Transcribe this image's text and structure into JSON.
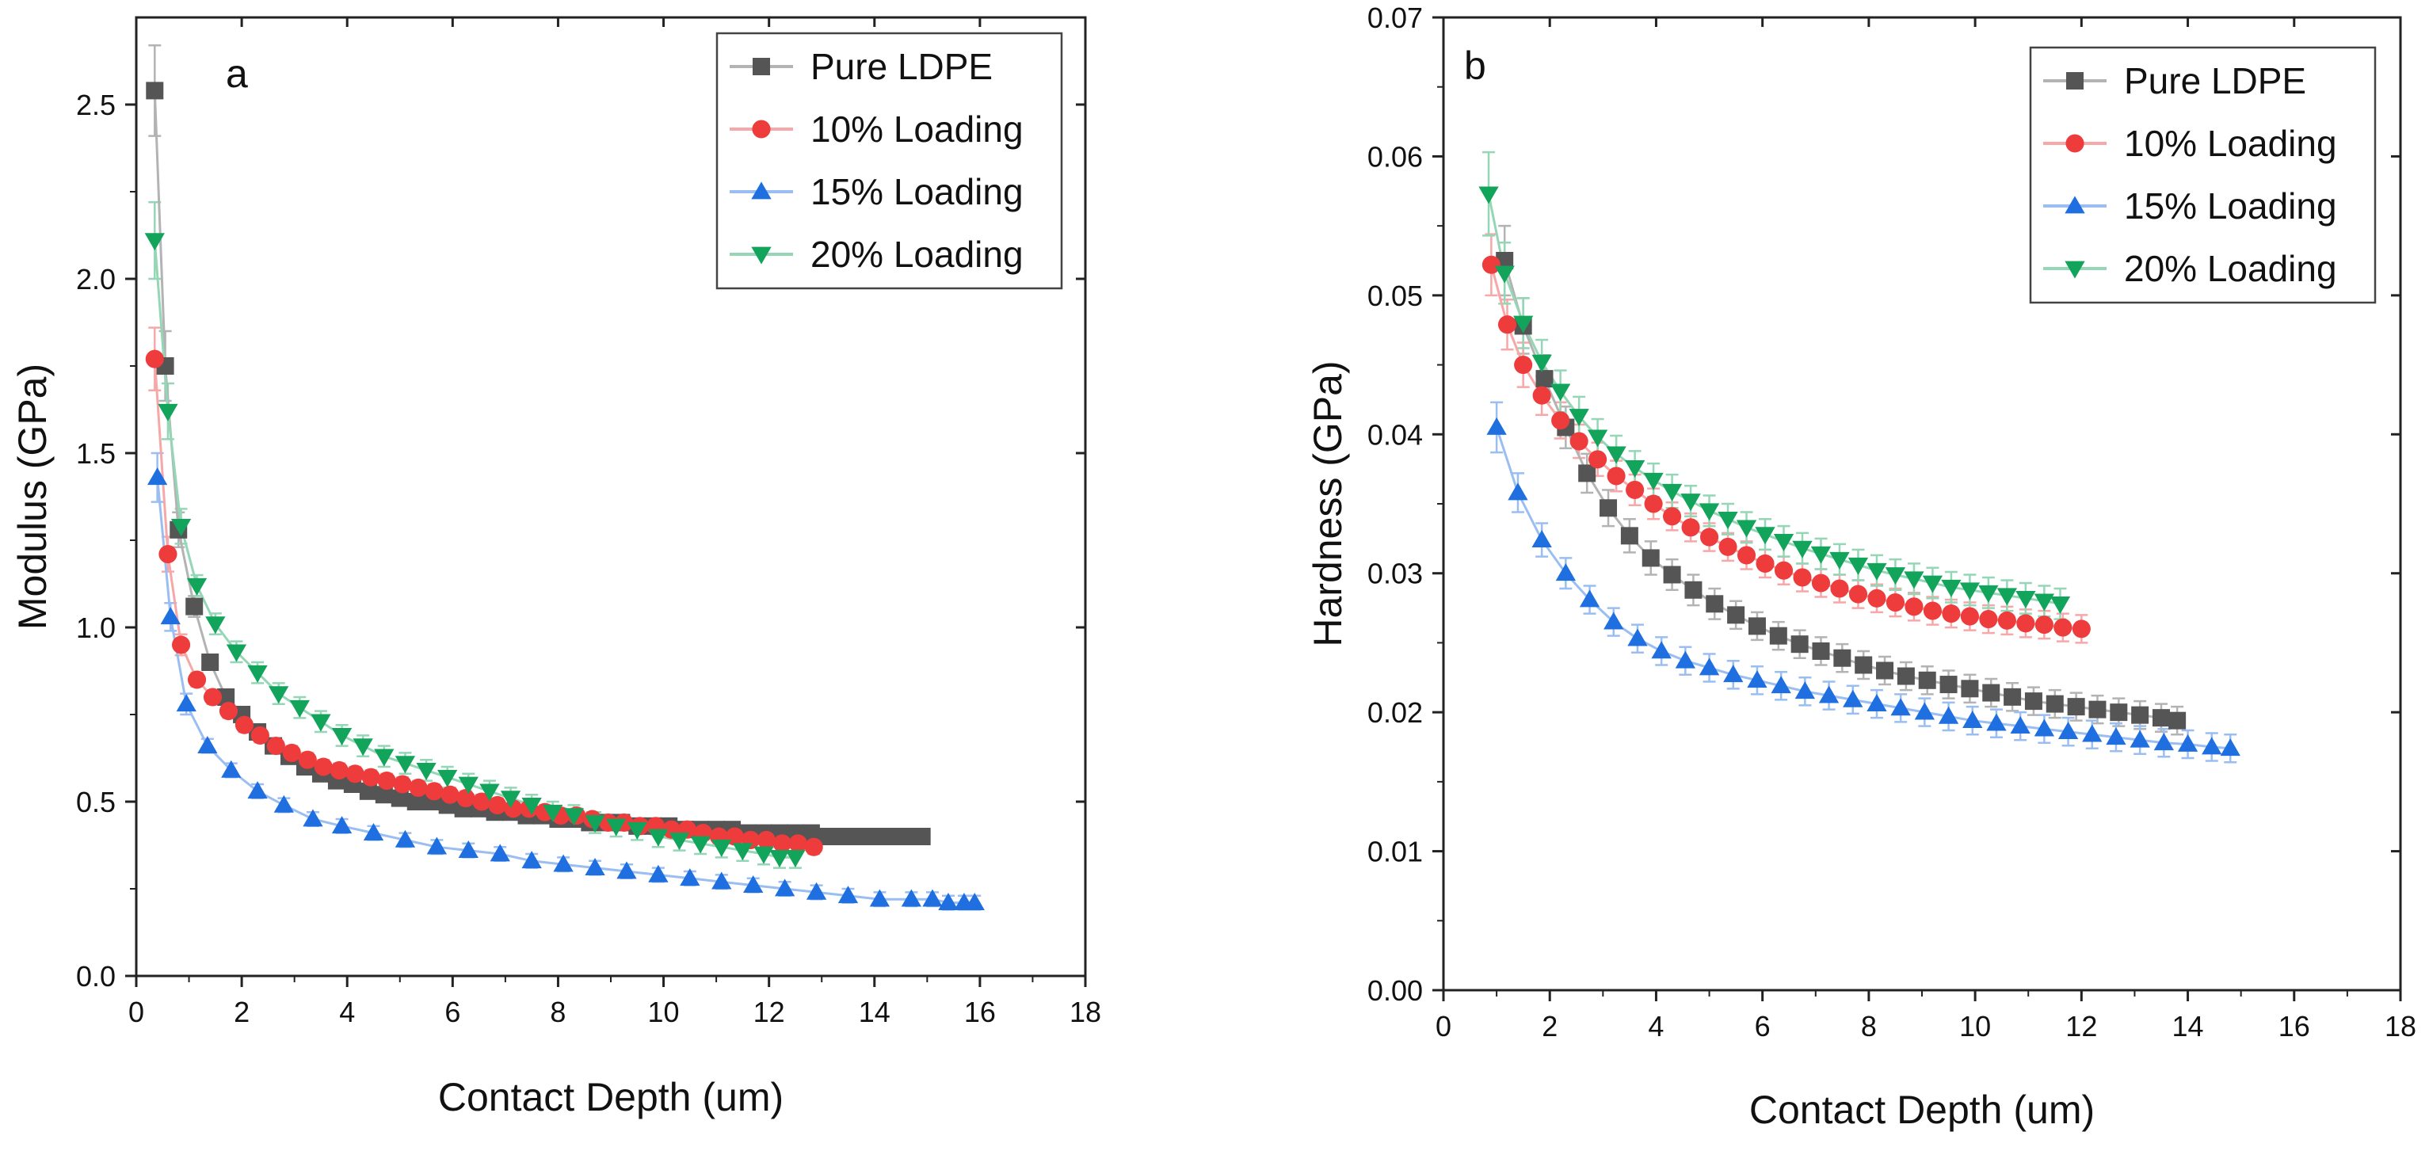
{
  "colors": {
    "pure_ldpe": "#555555",
    "loading_10": "#ee3b3b",
    "loading_15": "#1f6fe0",
    "loading_20": "#12a45a"
  },
  "chart_data": [
    {
      "type": "line",
      "panel_label": "a",
      "title": "",
      "xlabel": "Contact Depth (um)",
      "ylabel": "Modulus (GPa)",
      "xlim": [
        0,
        18
      ],
      "ylim": [
        0,
        2.75
      ],
      "xticks": [
        0,
        2,
        4,
        6,
        8,
        10,
        12,
        14,
        16,
        18
      ],
      "yticks": [
        0.0,
        0.5,
        1.0,
        1.5,
        2.0,
        2.5
      ],
      "xtick_labels": [
        "0",
        "2",
        "4",
        "6",
        "8",
        "10",
        "12",
        "14",
        "16",
        "18"
      ],
      "ytick_labels": [
        "0.0",
        "0.5",
        "1.0",
        "1.5",
        "2.0",
        "2.5"
      ],
      "legend_position": "top-right",
      "series": [
        {
          "name": "Pure LDPE",
          "marker": "square",
          "color_key": "pure_ldpe",
          "x": [
            0.35,
            0.55,
            0.8,
            1.1,
            1.4,
            1.7,
            2.0,
            2.3,
            2.6,
            2.9,
            3.2,
            3.5,
            3.8,
            4.1,
            4.4,
            4.7,
            5.0,
            5.3,
            5.6,
            5.9,
            6.2,
            6.5,
            6.8,
            7.1,
            7.4,
            7.7,
            8.0,
            8.3,
            8.6,
            8.9,
            9.2,
            9.5,
            9.8,
            10.1,
            10.4,
            10.7,
            11.0,
            11.3,
            11.6,
            11.9,
            12.2,
            12.5,
            12.8,
            13.1,
            13.4,
            13.7,
            14.0,
            14.3,
            14.6,
            14.9
          ],
          "y": [
            2.54,
            1.75,
            1.28,
            1.06,
            0.9,
            0.8,
            0.75,
            0.7,
            0.66,
            0.63,
            0.6,
            0.58,
            0.56,
            0.55,
            0.53,
            0.52,
            0.51,
            0.5,
            0.5,
            0.49,
            0.48,
            0.48,
            0.47,
            0.47,
            0.46,
            0.46,
            0.45,
            0.45,
            0.44,
            0.44,
            0.44,
            0.43,
            0.43,
            0.43,
            0.42,
            0.42,
            0.42,
            0.42,
            0.41,
            0.41,
            0.41,
            0.41,
            0.41,
            0.4,
            0.4,
            0.4,
            0.4,
            0.4,
            0.4,
            0.4
          ],
          "err": [
            0.13,
            0.1,
            0.05,
            0.03,
            0.02,
            0.02,
            0.02,
            0.02,
            0.02,
            0.02,
            0.02,
            0.02,
            0.02,
            0.02,
            0.02,
            0.02,
            0.02,
            0.02,
            0.02,
            0.02,
            0.02,
            0.02,
            0.02,
            0.02,
            0.02,
            0.02,
            0.02,
            0.02,
            0.02,
            0.02,
            0.02,
            0.02,
            0.02,
            0.02,
            0.02,
            0.02,
            0.02,
            0.02,
            0.02,
            0.02,
            0.02,
            0.02,
            0.02,
            0.02,
            0.02,
            0.02,
            0.02,
            0.02,
            0.02,
            0.02
          ]
        },
        {
          "name": "10% Loading",
          "marker": "circle",
          "color_key": "loading_10",
          "x": [
            0.35,
            0.6,
            0.85,
            1.15,
            1.45,
            1.75,
            2.05,
            2.35,
            2.65,
            2.95,
            3.25,
            3.55,
            3.85,
            4.15,
            4.45,
            4.75,
            5.05,
            5.35,
            5.65,
            5.95,
            6.25,
            6.55,
            6.85,
            7.15,
            7.45,
            7.75,
            8.05,
            8.35,
            8.65,
            8.95,
            9.25,
            9.55,
            9.85,
            10.15,
            10.45,
            10.75,
            11.05,
            11.35,
            11.65,
            11.95,
            12.25,
            12.55,
            12.85
          ],
          "y": [
            1.77,
            1.21,
            0.95,
            0.85,
            0.8,
            0.76,
            0.72,
            0.69,
            0.66,
            0.64,
            0.62,
            0.6,
            0.59,
            0.58,
            0.57,
            0.56,
            0.55,
            0.54,
            0.53,
            0.52,
            0.51,
            0.5,
            0.49,
            0.48,
            0.48,
            0.47,
            0.46,
            0.46,
            0.45,
            0.44,
            0.44,
            0.43,
            0.43,
            0.42,
            0.42,
            0.41,
            0.4,
            0.4,
            0.39,
            0.39,
            0.38,
            0.38,
            0.37
          ],
          "err": [
            0.09,
            0.05,
            0.03,
            0.02,
            0.02,
            0.02,
            0.02,
            0.02,
            0.02,
            0.02,
            0.02,
            0.02,
            0.02,
            0.02,
            0.02,
            0.02,
            0.02,
            0.02,
            0.02,
            0.02,
            0.02,
            0.02,
            0.02,
            0.02,
            0.02,
            0.02,
            0.02,
            0.02,
            0.02,
            0.02,
            0.02,
            0.02,
            0.02,
            0.02,
            0.02,
            0.02,
            0.02,
            0.02,
            0.02,
            0.02,
            0.02,
            0.02,
            0.02
          ]
        },
        {
          "name": "15% Loading",
          "marker": "triangle-up",
          "color_key": "loading_15",
          "x": [
            0.4,
            0.65,
            0.95,
            1.35,
            1.8,
            2.3,
            2.8,
            3.35,
            3.9,
            4.5,
            5.1,
            5.7,
            6.3,
            6.9,
            7.5,
            8.1,
            8.7,
            9.3,
            9.9,
            10.5,
            11.1,
            11.7,
            12.3,
            12.9,
            13.5,
            14.1,
            14.7,
            15.1,
            15.4,
            15.7,
            15.9
          ],
          "y": [
            1.43,
            1.03,
            0.78,
            0.66,
            0.59,
            0.53,
            0.49,
            0.45,
            0.43,
            0.41,
            0.39,
            0.37,
            0.36,
            0.35,
            0.33,
            0.32,
            0.31,
            0.3,
            0.29,
            0.28,
            0.27,
            0.26,
            0.25,
            0.24,
            0.23,
            0.22,
            0.22,
            0.22,
            0.21,
            0.21,
            0.21
          ],
          "err": [
            0.07,
            0.04,
            0.03,
            0.02,
            0.02,
            0.02,
            0.02,
            0.02,
            0.02,
            0.02,
            0.02,
            0.02,
            0.02,
            0.02,
            0.02,
            0.02,
            0.02,
            0.02,
            0.02,
            0.02,
            0.02,
            0.02,
            0.02,
            0.02,
            0.02,
            0.02,
            0.02,
            0.02,
            0.02,
            0.02,
            0.02
          ]
        },
        {
          "name": "20% Loading",
          "marker": "triangle-down",
          "color_key": "loading_20",
          "x": [
            0.35,
            0.6,
            0.85,
            1.15,
            1.5,
            1.9,
            2.3,
            2.7,
            3.1,
            3.5,
            3.9,
            4.3,
            4.7,
            5.1,
            5.5,
            5.9,
            6.3,
            6.7,
            7.1,
            7.5,
            7.9,
            8.3,
            8.7,
            9.1,
            9.5,
            9.9,
            10.3,
            10.7,
            11.1,
            11.5,
            11.9,
            12.2,
            12.5
          ],
          "y": [
            2.11,
            1.62,
            1.29,
            1.12,
            1.01,
            0.93,
            0.87,
            0.81,
            0.77,
            0.73,
            0.69,
            0.66,
            0.63,
            0.61,
            0.59,
            0.57,
            0.55,
            0.53,
            0.51,
            0.49,
            0.47,
            0.46,
            0.44,
            0.43,
            0.42,
            0.4,
            0.39,
            0.38,
            0.37,
            0.36,
            0.35,
            0.34,
            0.34
          ],
          "err": [
            0.11,
            0.08,
            0.05,
            0.03,
            0.03,
            0.03,
            0.03,
            0.03,
            0.03,
            0.03,
            0.03,
            0.03,
            0.03,
            0.03,
            0.03,
            0.03,
            0.03,
            0.03,
            0.03,
            0.03,
            0.03,
            0.03,
            0.03,
            0.03,
            0.03,
            0.03,
            0.03,
            0.03,
            0.03,
            0.03,
            0.03,
            0.03,
            0.03
          ]
        }
      ]
    },
    {
      "type": "line",
      "panel_label": "b",
      "title": "",
      "xlabel": "Contact Depth (um)",
      "ylabel": "Hardness (GPa)",
      "xlim": [
        0,
        18
      ],
      "ylim": [
        0,
        0.07
      ],
      "xticks": [
        0,
        2,
        4,
        6,
        8,
        10,
        12,
        14,
        16,
        18
      ],
      "yticks": [
        0.0,
        0.01,
        0.02,
        0.03,
        0.04,
        0.05,
        0.06,
        0.07
      ],
      "xtick_labels": [
        "0",
        "2",
        "4",
        "6",
        "8",
        "10",
        "12",
        "14",
        "16",
        "18"
      ],
      "ytick_labels": [
        "0.00",
        "0.01",
        "0.02",
        "0.03",
        "0.04",
        "0.05",
        "0.06",
        "0.07"
      ],
      "legend_position": "top-right",
      "series": [
        {
          "name": "Pure LDPE",
          "marker": "square",
          "color_key": "pure_ldpe",
          "x": [
            1.15,
            1.5,
            1.9,
            2.3,
            2.7,
            3.1,
            3.5,
            3.9,
            4.3,
            4.7,
            5.1,
            5.5,
            5.9,
            6.3,
            6.7,
            7.1,
            7.5,
            7.9,
            8.3,
            8.7,
            9.1,
            9.5,
            9.9,
            10.3,
            10.7,
            11.1,
            11.5,
            11.9,
            12.3,
            12.7,
            13.1,
            13.5,
            13.8
          ],
          "y": [
            0.0525,
            0.0478,
            0.044,
            0.0405,
            0.0372,
            0.0347,
            0.0327,
            0.0311,
            0.0299,
            0.0288,
            0.0278,
            0.027,
            0.0262,
            0.0255,
            0.0249,
            0.0244,
            0.0239,
            0.0234,
            0.023,
            0.0226,
            0.0223,
            0.022,
            0.0217,
            0.0214,
            0.0211,
            0.0208,
            0.0206,
            0.0204,
            0.0202,
            0.02,
            0.0198,
            0.0196,
            0.0194
          ],
          "err": [
            0.0025,
            0.002,
            0.0017,
            0.0015,
            0.0014,
            0.0013,
            0.0012,
            0.0012,
            0.0011,
            0.0011,
            0.0011,
            0.001,
            0.001,
            0.001,
            0.001,
            0.001,
            0.001,
            0.001,
            0.001,
            0.001,
            0.001,
            0.001,
            0.001,
            0.001,
            0.001,
            0.001,
            0.001,
            0.001,
            0.001,
            0.001,
            0.001,
            0.001,
            0.001
          ]
        },
        {
          "name": "10% Loading",
          "marker": "circle",
          "color_key": "loading_10",
          "x": [
            0.9,
            1.2,
            1.5,
            1.85,
            2.2,
            2.55,
            2.9,
            3.25,
            3.6,
            3.95,
            4.3,
            4.65,
            5.0,
            5.35,
            5.7,
            6.05,
            6.4,
            6.75,
            7.1,
            7.45,
            7.8,
            8.15,
            8.5,
            8.85,
            9.2,
            9.55,
            9.9,
            10.25,
            10.6,
            10.95,
            11.3,
            11.65,
            12.0
          ],
          "y": [
            0.0522,
            0.0479,
            0.045,
            0.0428,
            0.041,
            0.0395,
            0.0382,
            0.037,
            0.036,
            0.035,
            0.0341,
            0.0333,
            0.0326,
            0.0319,
            0.0313,
            0.0307,
            0.0302,
            0.0297,
            0.0293,
            0.0289,
            0.0285,
            0.0282,
            0.0279,
            0.0276,
            0.0273,
            0.0271,
            0.0269,
            0.0267,
            0.0266,
            0.0264,
            0.0263,
            0.0261,
            0.026
          ],
          "err": [
            0.0022,
            0.0018,
            0.0016,
            0.0014,
            0.0013,
            0.0012,
            0.0012,
            0.0011,
            0.0011,
            0.0011,
            0.001,
            0.001,
            0.001,
            0.001,
            0.001,
            0.001,
            0.001,
            0.001,
            0.001,
            0.001,
            0.001,
            0.001,
            0.001,
            0.001,
            0.001,
            0.001,
            0.001,
            0.001,
            0.001,
            0.001,
            0.001,
            0.001,
            0.001
          ]
        },
        {
          "name": "15% Loading",
          "marker": "triangle-up",
          "color_key": "loading_15",
          "x": [
            1.0,
            1.4,
            1.85,
            2.3,
            2.75,
            3.2,
            3.65,
            4.1,
            4.55,
            5.0,
            5.45,
            5.9,
            6.35,
            6.8,
            7.25,
            7.7,
            8.15,
            8.6,
            9.05,
            9.5,
            9.95,
            10.4,
            10.85,
            11.3,
            11.75,
            12.2,
            12.65,
            13.1,
            13.55,
            14.0,
            14.45,
            14.8
          ],
          "y": [
            0.0405,
            0.0358,
            0.0324,
            0.03,
            0.0281,
            0.0265,
            0.0253,
            0.0244,
            0.0237,
            0.0232,
            0.0227,
            0.0223,
            0.0219,
            0.0215,
            0.0212,
            0.0209,
            0.0206,
            0.0203,
            0.02,
            0.0197,
            0.0194,
            0.0192,
            0.019,
            0.0188,
            0.0186,
            0.0184,
            0.0182,
            0.018,
            0.0178,
            0.0177,
            0.0175,
            0.0174
          ],
          "err": [
            0.0018,
            0.0014,
            0.0012,
            0.0011,
            0.001,
            0.001,
            0.001,
            0.001,
            0.001,
            0.001,
            0.001,
            0.001,
            0.001,
            0.001,
            0.001,
            0.001,
            0.001,
            0.001,
            0.001,
            0.001,
            0.001,
            0.001,
            0.001,
            0.001,
            0.001,
            0.001,
            0.001,
            0.001,
            0.001,
            0.001,
            0.001,
            0.001
          ]
        },
        {
          "name": "20% Loading",
          "marker": "triangle-down",
          "color_key": "loading_20",
          "x": [
            0.85,
            1.15,
            1.5,
            1.85,
            2.2,
            2.55,
            2.9,
            3.25,
            3.6,
            3.95,
            4.3,
            4.65,
            5.0,
            5.35,
            5.7,
            6.05,
            6.4,
            6.75,
            7.1,
            7.45,
            7.8,
            8.15,
            8.5,
            8.85,
            9.2,
            9.55,
            9.9,
            10.25,
            10.6,
            10.95,
            11.3,
            11.6
          ],
          "y": [
            0.0573,
            0.0516,
            0.048,
            0.0452,
            0.0431,
            0.0413,
            0.0398,
            0.0386,
            0.0376,
            0.0367,
            0.0359,
            0.0352,
            0.0345,
            0.0339,
            0.0333,
            0.0328,
            0.0323,
            0.0318,
            0.0314,
            0.031,
            0.0306,
            0.0302,
            0.0299,
            0.0296,
            0.0293,
            0.029,
            0.0288,
            0.0286,
            0.0284,
            0.0282,
            0.028,
            0.0278
          ],
          "err": [
            0.003,
            0.0022,
            0.0018,
            0.0016,
            0.0015,
            0.0014,
            0.0013,
            0.0013,
            0.0012,
            0.0012,
            0.0012,
            0.0011,
            0.0011,
            0.0011,
            0.0011,
            0.0011,
            0.0011,
            0.0011,
            0.0011,
            0.0011,
            0.0011,
            0.0011,
            0.0011,
            0.0011,
            0.0011,
            0.0011,
            0.0011,
            0.0011,
            0.0011,
            0.0011,
            0.0011,
            0.0011
          ]
        }
      ]
    }
  ]
}
